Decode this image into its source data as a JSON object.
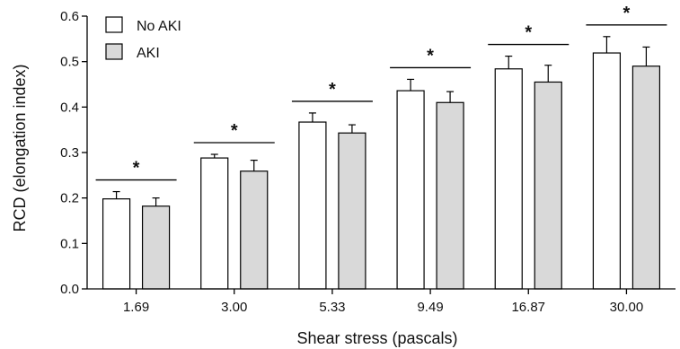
{
  "chart_data": {
    "type": "bar",
    "xlabel": "Shear stress (pascals)",
    "ylabel": "RCD (elongation index)",
    "ylim": [
      0,
      0.6
    ],
    "yticks": [
      "0.0",
      "0.1",
      "0.2",
      "0.3",
      "0.4",
      "0.5",
      "0.6"
    ],
    "categories": [
      "1.69",
      "3.00",
      "5.33",
      "9.49",
      "16.87",
      "30.00"
    ],
    "series": [
      {
        "name": "No AKI",
        "color": "#ffffff",
        "values": [
          0.198,
          0.288,
          0.367,
          0.436,
          0.484,
          0.519
        ],
        "errors": [
          0.016,
          0.008,
          0.02,
          0.025,
          0.028,
          0.036
        ]
      },
      {
        "name": "AKI",
        "color": "#d9d9d9",
        "values": [
          0.182,
          0.259,
          0.343,
          0.41,
          0.455,
          0.49
        ],
        "errors": [
          0.018,
          0.024,
          0.018,
          0.024,
          0.037,
          0.042
        ]
      }
    ],
    "annotations": [
      "*",
      "*",
      "*",
      "*",
      "*",
      "*"
    ],
    "legend_position": "top-left",
    "grid": false
  }
}
